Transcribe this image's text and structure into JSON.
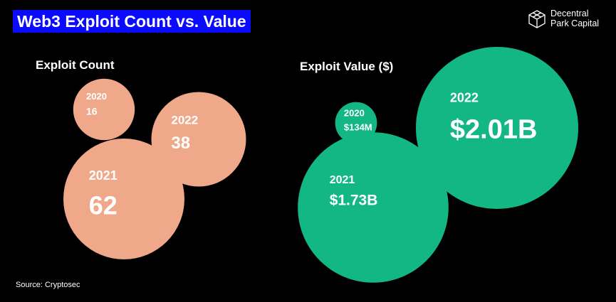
{
  "title": "Web3 Exploit Count vs. Value",
  "brand": {
    "line1": "Decentral",
    "line2": "Park Capital",
    "icon": "cube-logo-icon"
  },
  "source": "Source: Cryptosec",
  "colors": {
    "title_bg": "#0a0aff",
    "count_bubble": "#f0a88a",
    "value_bubble": "#12b784",
    "background": "#000000"
  },
  "chart_data": [
    {
      "type": "bubble",
      "title": "Exploit Count",
      "points": [
        {
          "year": "2020",
          "label": "16",
          "value": 16
        },
        {
          "year": "2022",
          "label": "38",
          "value": 38
        },
        {
          "year": "2021",
          "label": "62",
          "value": 62
        }
      ]
    },
    {
      "type": "bubble",
      "title": "Exploit Value ($)",
      "points": [
        {
          "year": "2020",
          "label": "$134M",
          "value": 134000000
        },
        {
          "year": "2022",
          "label": "$2.01B",
          "value": 2010000000
        },
        {
          "year": "2021",
          "label": "$1.73B",
          "value": 1730000000
        }
      ]
    }
  ]
}
